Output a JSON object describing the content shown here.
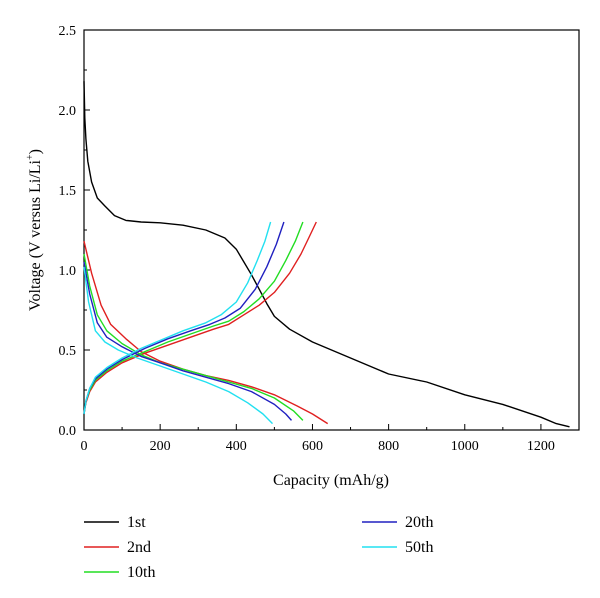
{
  "chart_data": {
    "type": "line",
    "title": "",
    "xlabel": "Capacity (mAh/g)",
    "ylabel": "Voltage (V versus Li/Li",
    "ylabel_superscript": "+",
    "ylabel_suffix": ")",
    "xlim": [
      0,
      1300
    ],
    "ylim": [
      0,
      2.5
    ],
    "xticks": [
      0,
      200,
      400,
      600,
      800,
      1000,
      1200
    ],
    "yticks": [
      0.0,
      0.5,
      1.0,
      1.5,
      2.0,
      2.5
    ],
    "xtick_labels": [
      "0",
      "200",
      "400",
      "600",
      "800",
      "1000",
      "1200"
    ],
    "ytick_labels": [
      "0.0",
      "0.5",
      "1.0",
      "1.5",
      "2.0",
      "2.5"
    ],
    "grid": false,
    "legend_position": "bottom",
    "series": [
      {
        "name": "1st",
        "color": "#000000",
        "x": [
          0,
          2,
          5,
          10,
          20,
          35,
          55,
          80,
          110,
          150,
          200,
          260,
          320,
          370,
          400,
          420,
          440,
          460,
          480,
          500,
          540,
          600,
          700,
          800,
          900,
          1000,
          1100,
          1200,
          1240,
          1275
        ],
        "y": [
          2.18,
          1.95,
          1.82,
          1.68,
          1.55,
          1.45,
          1.4,
          1.34,
          1.31,
          1.3,
          1.295,
          1.28,
          1.25,
          1.2,
          1.13,
          1.05,
          0.97,
          0.88,
          0.79,
          0.71,
          0.63,
          0.55,
          0.45,
          0.35,
          0.3,
          0.22,
          0.16,
          0.08,
          0.04,
          0.02
        ]
      },
      {
        "name": "2nd",
        "color": "#e02020",
        "x": [
          0,
          20,
          45,
          70,
          110,
          150,
          200,
          260,
          320,
          380,
          440,
          500,
          560,
          600,
          640
        ],
        "y": [
          1.18,
          0.98,
          0.78,
          0.66,
          0.57,
          0.49,
          0.43,
          0.38,
          0.34,
          0.31,
          0.27,
          0.22,
          0.15,
          0.1,
          0.04
        ],
        "x2": [
          0,
          5,
          15,
          30,
          60,
          100,
          160,
          220,
          280,
          340,
          380,
          420,
          460,
          500,
          540,
          570,
          590,
          610
        ],
        "y2": [
          0.1,
          0.17,
          0.24,
          0.3,
          0.36,
          0.42,
          0.48,
          0.53,
          0.58,
          0.63,
          0.66,
          0.72,
          0.78,
          0.86,
          0.98,
          1.1,
          1.2,
          1.3
        ]
      },
      {
        "name": "10th",
        "color": "#22dd22",
        "x": [
          0,
          15,
          35,
          60,
          100,
          150,
          200,
          260,
          320,
          380,
          440,
          500,
          550,
          575
        ],
        "y": [
          1.1,
          0.9,
          0.72,
          0.62,
          0.54,
          0.47,
          0.42,
          0.38,
          0.34,
          0.3,
          0.26,
          0.2,
          0.12,
          0.06
        ],
        "x2": [
          0,
          5,
          15,
          30,
          60,
          100,
          160,
          220,
          280,
          340,
          380,
          420,
          460,
          500,
          530,
          555,
          575
        ],
        "y2": [
          0.1,
          0.18,
          0.25,
          0.31,
          0.37,
          0.43,
          0.49,
          0.55,
          0.6,
          0.65,
          0.68,
          0.74,
          0.82,
          0.93,
          1.06,
          1.18,
          1.3
        ]
      },
      {
        "name": "20th",
        "color": "#2020c0",
        "x": [
          0,
          15,
          35,
          60,
          100,
          150,
          200,
          260,
          320,
          380,
          440,
          500,
          530,
          545
        ],
        "y": [
          1.05,
          0.85,
          0.67,
          0.58,
          0.52,
          0.46,
          0.42,
          0.37,
          0.33,
          0.29,
          0.24,
          0.16,
          0.1,
          0.06
        ],
        "x2": [
          0,
          5,
          15,
          30,
          60,
          100,
          160,
          220,
          280,
          330,
          370,
          410,
          450,
          480,
          505,
          525
        ],
        "y2": [
          0.1,
          0.18,
          0.26,
          0.32,
          0.38,
          0.44,
          0.51,
          0.57,
          0.62,
          0.66,
          0.7,
          0.76,
          0.88,
          1.02,
          1.16,
          1.3
        ]
      },
      {
        "name": "50th",
        "color": "#22e0f0",
        "x": [
          0,
          12,
          30,
          55,
          90,
          140,
          200,
          260,
          320,
          380,
          430,
          470,
          495
        ],
        "y": [
          1.02,
          0.8,
          0.62,
          0.55,
          0.5,
          0.45,
          0.4,
          0.35,
          0.3,
          0.24,
          0.17,
          0.1,
          0.04
        ],
        "x2": [
          0,
          5,
          15,
          30,
          60,
          100,
          150,
          200,
          260,
          320,
          360,
          400,
          430,
          455,
          475,
          490
        ],
        "y2": [
          0.1,
          0.18,
          0.26,
          0.33,
          0.39,
          0.45,
          0.51,
          0.56,
          0.62,
          0.67,
          0.72,
          0.8,
          0.92,
          1.06,
          1.18,
          1.3
        ]
      }
    ]
  }
}
